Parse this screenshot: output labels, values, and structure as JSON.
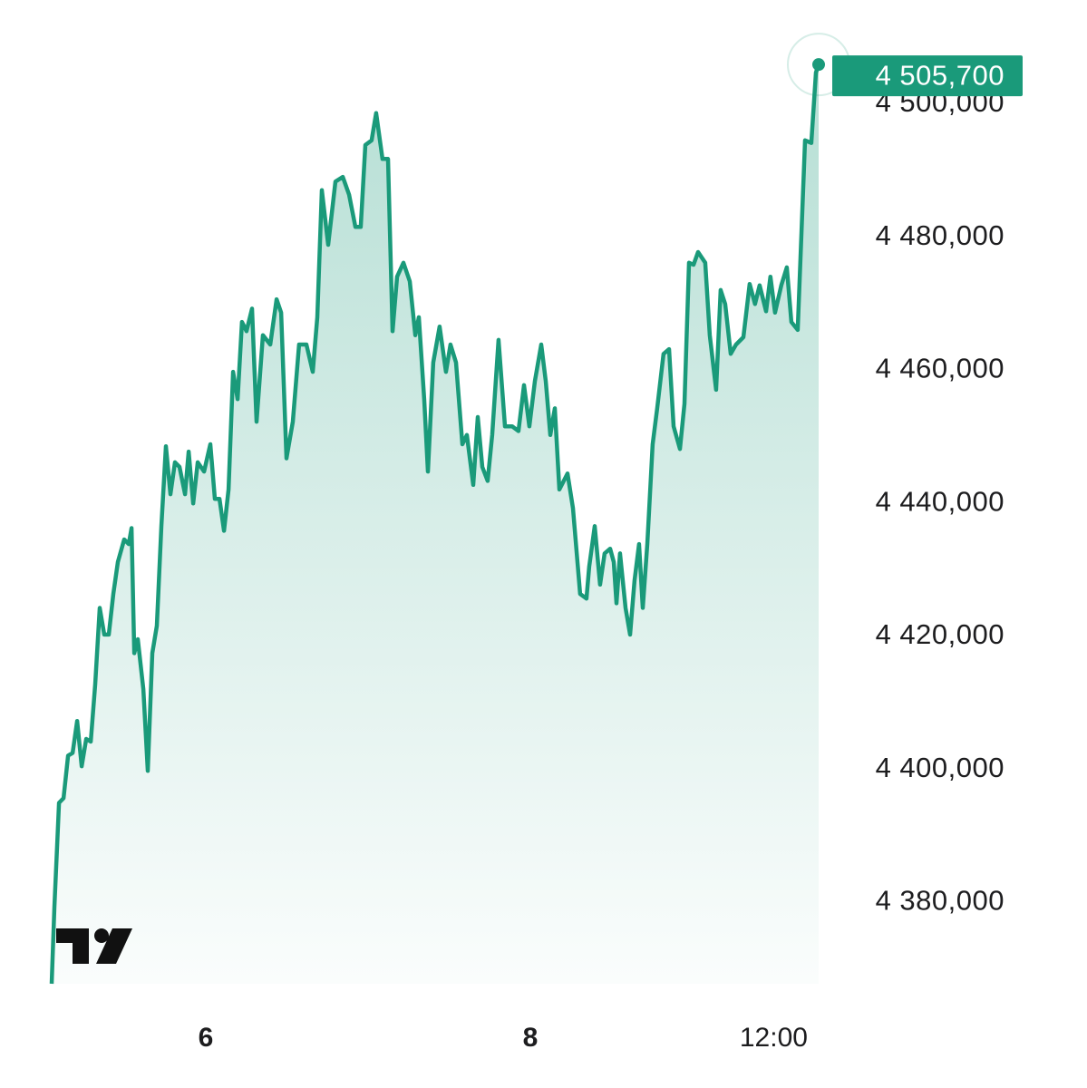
{
  "chart_data": {
    "type": "area",
    "color": "#1a9a7a",
    "x": [
      5.05,
      5.067,
      5.095,
      5.123,
      5.151,
      5.179,
      5.207,
      5.235,
      5.263,
      5.291,
      5.318,
      5.346,
      5.374,
      5.402,
      5.43,
      5.458,
      5.497,
      5.525,
      5.542,
      5.559,
      5.581,
      5.615,
      5.642,
      5.67,
      5.698,
      5.726,
      5.754,
      5.782,
      5.81,
      5.838,
      5.872,
      5.894,
      5.922,
      5.95,
      5.989,
      6.028,
      6.056,
      6.084,
      6.112,
      6.14,
      6.168,
      6.196,
      6.223,
      6.251,
      6.285,
      6.313,
      6.352,
      6.397,
      6.436,
      6.464,
      6.497,
      6.536,
      6.575,
      6.62,
      6.659,
      6.687,
      6.715,
      6.754,
      6.799,
      6.844,
      6.883,
      6.922,
      6.955,
      6.983,
      7.022,
      7.05,
      7.089,
      7.123,
      7.151,
      7.179,
      7.218,
      7.257,
      7.291,
      7.313,
      7.346,
      7.369,
      7.402,
      7.441,
      7.48,
      7.508,
      7.542,
      7.581,
      7.609,
      7.648,
      7.676,
      7.704,
      7.737,
      7.765,
      7.804,
      7.844,
      7.888,
      7.927,
      7.961,
      7.994,
      8.028,
      8.067,
      8.095,
      8.123,
      8.151,
      8.179,
      8.229,
      8.263,
      8.307,
      8.346,
      8.363,
      8.397,
      8.43,
      8.458,
      8.492,
      8.514,
      8.531,
      8.553,
      8.587,
      8.615,
      8.642,
      8.67,
      8.693,
      8.721,
      8.754,
      8.782,
      8.821,
      8.855,
      8.883,
      8.922,
      8.95,
      8.978,
      9.006,
      9.034,
      9.078,
      9.106,
      9.145,
      9.173,
      9.201,
      9.235,
      9.268,
      9.313,
      9.352,
      9.385,
      9.413,
      9.453,
      9.48,
      9.508,
      9.547,
      9.581,
      9.609,
      9.648,
      9.693,
      9.732,
      9.76,
      9.777
    ],
    "values": [
      4367500,
      4379000,
      4394700,
      4395400,
      4401800,
      4402200,
      4407000,
      4400200,
      4404300,
      4403900,
      4412500,
      4424000,
      4420000,
      4420000,
      4426100,
      4430900,
      4434300,
      4433600,
      4436000,
      4417200,
      4419300,
      4411800,
      4399500,
      4417200,
      4421300,
      4436300,
      4448300,
      4441100,
      4445900,
      4445200,
      4441100,
      4447500,
      4439700,
      4445900,
      4444500,
      4448600,
      4440400,
      4440400,
      4435600,
      4441800,
      4459500,
      4455400,
      4467000,
      4465600,
      4469000,
      4452000,
      4465000,
      4463600,
      4470400,
      4468400,
      4446500,
      4452000,
      4463600,
      4463600,
      4459500,
      4467700,
      4486800,
      4478600,
      4488100,
      4488800,
      4486100,
      4481300,
      4481300,
      4493600,
      4494300,
      4498400,
      4491500,
      4491500,
      4465600,
      4473800,
      4475900,
      4473100,
      4465000,
      4467700,
      4455400,
      4444500,
      4460900,
      4466300,
      4459500,
      4463600,
      4460900,
      4448600,
      4450000,
      4442500,
      4452700,
      4445200,
      4443100,
      4450000,
      4464300,
      4451300,
      4451300,
      4450600,
      4457500,
      4451300,
      4458100,
      4463600,
      4458100,
      4450000,
      4454000,
      4441800,
      4444200,
      4439000,
      4426100,
      4425400,
      4430200,
      4436300,
      4427500,
      4432200,
      4432900,
      4430900,
      4424700,
      4432200,
      4424000,
      4420000,
      4428100,
      4433600,
      4424000,
      4433600,
      4448600,
      4454000,
      4462200,
      4462900,
      4451300,
      4447900,
      4454700,
      4475900,
      4475600,
      4477500,
      4475900,
      4465000,
      4456800,
      4471800,
      4469700,
      4462200,
      4463600,
      4464700,
      4472700,
      4469700,
      4472500,
      4468600,
      4473800,
      4468400,
      4472500,
      4475200,
      4467000,
      4465800,
      4494300,
      4493900,
      4504500,
      4505700
    ],
    "last_value_label": "4 505,700",
    "xlim": [
      5.05,
      9.777
    ],
    "xticks": [
      {
        "value": 6,
        "label": "6"
      },
      {
        "value": 8,
        "label": "8"
      },
      {
        "value": 9.5,
        "label": "12:00"
      }
    ],
    "ylim": [
      4367500,
      4515400
    ],
    "yticks": [
      {
        "value": 4380000,
        "label": "4 380,000"
      },
      {
        "value": 4400000,
        "label": "4 400,000"
      },
      {
        "value": 4420000,
        "label": "4 420,000"
      },
      {
        "value": 4440000,
        "label": "4 440,000"
      },
      {
        "value": 4460000,
        "label": "4 460,000"
      },
      {
        "value": 4480000,
        "label": "4 480,000"
      },
      {
        "value": 4500000,
        "label": "4 500,000"
      }
    ]
  }
}
